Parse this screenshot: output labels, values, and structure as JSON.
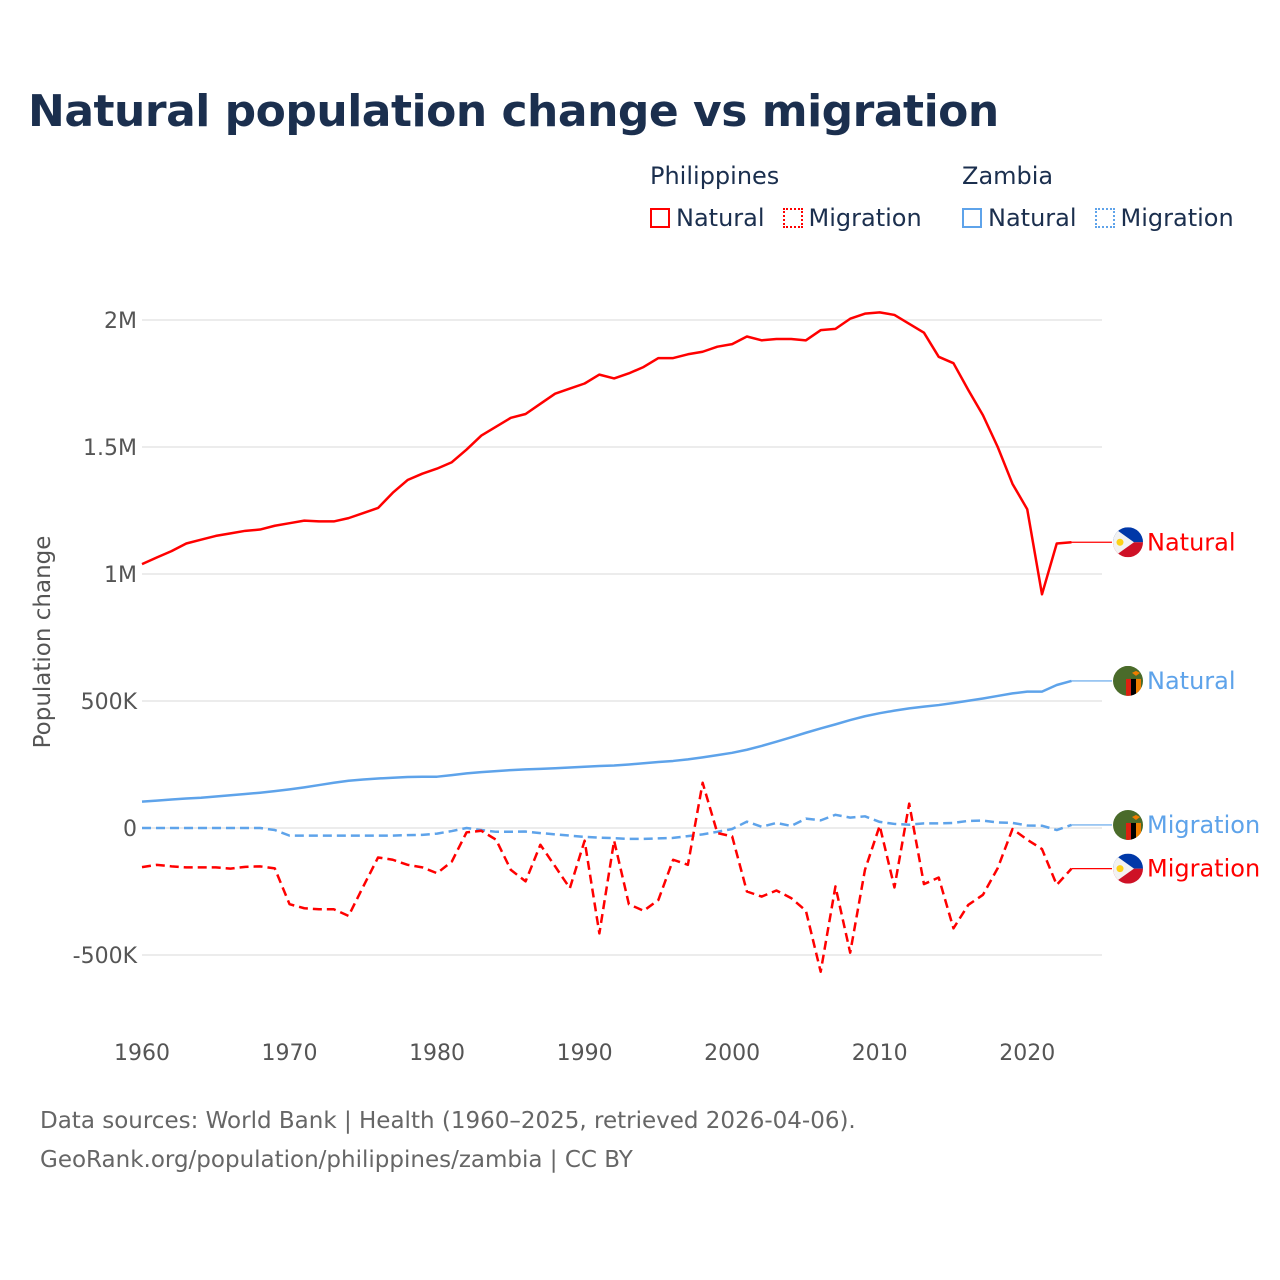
{
  "title": "Natural population change vs migration",
  "legend": {
    "groups": [
      {
        "name": "Philippines",
        "items": [
          "Natural",
          "Migration"
        ],
        "color": "#ff0000"
      },
      {
        "name": "Zambia",
        "items": [
          "Natural",
          "Migration"
        ],
        "color": "#5ea3ea"
      }
    ]
  },
  "footer": {
    "line1": "Data sources: World Bank | Health (1960–2025, retrieved 2026-04-06).",
    "line2": "GeoRank.org/population/philippines/zambia | CC BY"
  },
  "chart_data": {
    "type": "line",
    "title": "Natural population change vs migration",
    "xlabel": "",
    "ylabel": "Population change",
    "xlim": [
      1960,
      2025
    ],
    "ylim": [
      -600000,
      2100000
    ],
    "grid": true,
    "legend_placement": "top-right",
    "x_ticks": [
      1960,
      1970,
      1980,
      1990,
      2000,
      2010,
      2020
    ],
    "x_tick_labels": [
      "1960",
      "1970",
      "1980",
      "1990",
      "2000",
      "2010",
      "2020"
    ],
    "y_ticks": [
      -500000,
      0,
      500000,
      1000000,
      1500000,
      2000000
    ],
    "y_tick_labels": [
      "-500K",
      "0",
      "500K",
      "1M",
      "1.5M",
      "2M"
    ],
    "x_start": 1960,
    "series": [
      {
        "name": "Philippines Natural",
        "label": "Natural",
        "country": "Philippines",
        "color": "#ff0000",
        "dashed": false,
        "flag": "philippines-flag",
        "values_thousands": [
          1039,
          1065,
          1090,
          1120,
          1135,
          1150,
          1160,
          1170,
          1175,
          1190,
          1200,
          1210,
          1207,
          1207,
          1220,
          1240,
          1260,
          1320,
          1370,
          1395,
          1415,
          1440,
          1490,
          1545,
          1580,
          1615,
          1630,
          1670,
          1710,
          1730,
          1750,
          1785,
          1770,
          1790,
          1815,
          1850,
          1850,
          1865,
          1875,
          1895,
          1905,
          1935,
          1920,
          1925,
          1925,
          1920,
          1960,
          1965,
          2005,
          2025,
          2030,
          2020,
          1985,
          1950,
          1855,
          1830,
          1725,
          1625,
          1500,
          1355,
          1255,
          920,
          1120,
          1125
        ]
      },
      {
        "name": "Zambia Natural",
        "label": "Natural",
        "country": "Zambia",
        "color": "#5ea3ea",
        "dashed": false,
        "flag": "zambia-flag",
        "values_thousands": [
          104,
          108,
          112,
          116,
          119,
          124,
          129,
          134,
          139,
          145,
          152,
          160,
          169,
          178,
          186,
          191,
          195,
          198,
          201,
          202,
          202,
          208,
          215,
          220,
          224,
          228,
          231,
          233,
          235,
          238,
          241,
          244,
          246,
          250,
          255,
          260,
          264,
          270,
          278,
          287,
          296,
          308,
          323,
          340,
          357,
          375,
          392,
          408,
          425,
          440,
          452,
          462,
          471,
          478,
          484,
          492,
          501,
          510,
          520,
          530,
          537,
          537,
          563,
          579
        ]
      },
      {
        "name": "Zambia Migration",
        "label": "Migration",
        "country": "Zambia",
        "color": "#5ea3ea",
        "dashed": true,
        "flag": "zambia-flag",
        "values_thousands": [
          0,
          0,
          0,
          0,
          0,
          0,
          0,
          0,
          0,
          -8,
          -30,
          -30,
          -30,
          -30,
          -30,
          -30,
          -30,
          -30,
          -28,
          -27,
          -22,
          -12,
          0,
          -8,
          -15,
          -15,
          -14,
          -20,
          -25,
          -30,
          -35,
          -38,
          -40,
          -43,
          -43,
          -41,
          -39,
          -32,
          -25,
          -15,
          -4,
          25,
          5,
          20,
          8,
          37,
          30,
          52,
          41,
          46,
          24,
          16,
          13,
          18,
          18,
          20,
          28,
          29,
          22,
          20,
          10,
          9,
          -8,
          12
        ]
      },
      {
        "name": "Philippines Migration",
        "label": "Migration",
        "country": "Philippines",
        "color": "#ff0000",
        "dashed": true,
        "flag": "philippines-flag",
        "values_thousands": [
          -154,
          -145,
          -151,
          -155,
          -155,
          -155,
          -160,
          -153,
          -151,
          -159,
          -300,
          -316,
          -320,
          -320,
          -346,
          -230,
          -116,
          -125,
          -145,
          -155,
          -178,
          -132,
          -17,
          -11,
          -46,
          -165,
          -210,
          -66,
          -151,
          -237,
          -50,
          -415,
          -50,
          -300,
          -326,
          -283,
          -125,
          -145,
          178,
          -20,
          -33,
          -250,
          -270,
          -246,
          -276,
          -326,
          -566,
          -230,
          -491,
          -165,
          9,
          -234,
          96,
          -221,
          -195,
          -395,
          -303,
          -263,
          -158,
          -4,
          -46,
          -83,
          -224,
          -160
        ]
      }
    ]
  }
}
